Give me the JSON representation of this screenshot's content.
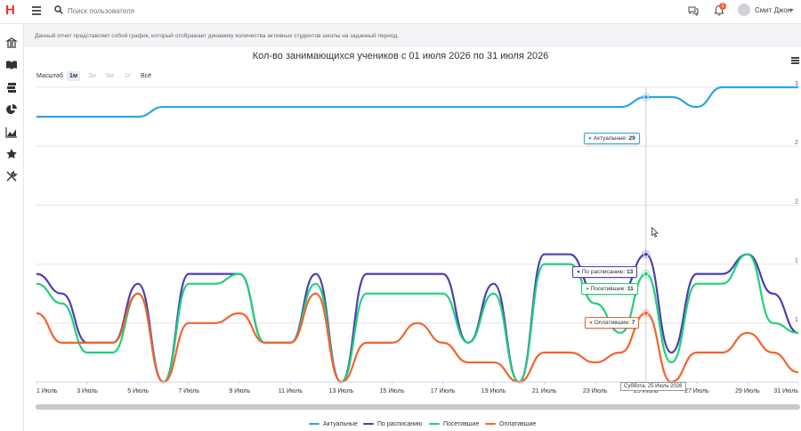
{
  "app": {
    "logo": "H"
  },
  "header": {
    "search_placeholder": "Поиск пользователя",
    "notifications_count": "1",
    "user_name": "Смит Джон"
  },
  "sidebar": {
    "icons": [
      "school-icon",
      "book-icon",
      "layers-icon",
      "pie-chart-icon",
      "area-chart-icon",
      "star-award-icon",
      "tools-icon"
    ]
  },
  "info": {
    "text": "Данный отчет представляет собой график, который отображает динамику количества активных студентов школы на заданный период."
  },
  "zoom": {
    "label": "Масштаб",
    "options": [
      "1м",
      "3м",
      "6м",
      "1г",
      "Всё"
    ],
    "active": "1м"
  },
  "tooltip": {
    "date": "Суббота, 25 Июль 2026",
    "actual_label": "Актуальные:",
    "actual_value": "29",
    "scheduled_label": "По расписанию:",
    "scheduled_value": "13",
    "attended_label": "Посетившие:",
    "attended_value": "11",
    "paid_label": "Оплатившие:",
    "paid_value": "7"
  },
  "chart_data": {
    "type": "line",
    "title": "Кол-во занимающихся учеников с 01 июля 2026 по 31 июля 2026",
    "x": [
      1,
      2,
      3,
      4,
      5,
      6,
      7,
      8,
      9,
      10,
      11,
      12,
      13,
      14,
      15,
      16,
      17,
      18,
      19,
      20,
      21,
      22,
      23,
      24,
      25,
      26,
      27,
      28,
      29,
      30,
      31
    ],
    "x_tick_labels": [
      "1 Июль",
      "3 Июль",
      "5 Июль",
      "7 Июль",
      "9 Июль",
      "11 Июль",
      "13 Июль",
      "15 Июль",
      "17 Июль",
      "19 Июль",
      "21 Июль",
      "23 Июль",
      "25 Июль",
      "27 Июль",
      "29 Июль",
      "31 Июль"
    ],
    "ylim": [
      0,
      30
    ],
    "y_tick_labels": [
      "3",
      "2",
      "2",
      "1",
      "1"
    ],
    "grid": true,
    "legend_position": "bottom",
    "series": [
      {
        "name": "Актуальные",
        "color": "#2fa3e6",
        "values": [
          27,
          27,
          27,
          27,
          27,
          28,
          28,
          28,
          28,
          28,
          28,
          28,
          28,
          28,
          28,
          28,
          28,
          28,
          28,
          28,
          28,
          28,
          28,
          28,
          29,
          29,
          28,
          30,
          30,
          30,
          30
        ]
      },
      {
        "name": "По расписанию",
        "color": "#4b3fb0",
        "values": [
          11,
          9,
          4,
          4,
          10,
          0,
          11,
          11,
          11,
          4,
          4,
          11,
          0,
          11,
          11,
          11,
          11,
          4,
          10,
          0,
          13,
          13,
          9,
          9,
          13,
          3,
          11,
          11,
          13,
          9,
          5
        ]
      },
      {
        "name": "Посетившие",
        "color": "#1fd07a",
        "values": [
          10,
          8,
          3,
          3,
          9,
          0,
          10,
          10,
          11,
          4,
          4,
          10,
          0,
          9,
          9,
          9,
          9,
          4,
          9,
          0,
          12,
          12,
          8,
          5,
          11,
          2,
          10,
          10,
          13,
          6,
          5
        ]
      },
      {
        "name": "Оплатившие",
        "color": "#f4632d",
        "values": [
          7,
          4,
          4,
          4,
          9,
          0,
          6,
          6,
          7,
          4,
          4,
          9,
          0,
          4,
          4,
          6,
          4,
          2,
          2,
          0,
          3,
          3,
          2,
          3,
          7,
          0,
          3,
          3,
          5,
          3,
          1
        ]
      }
    ]
  }
}
